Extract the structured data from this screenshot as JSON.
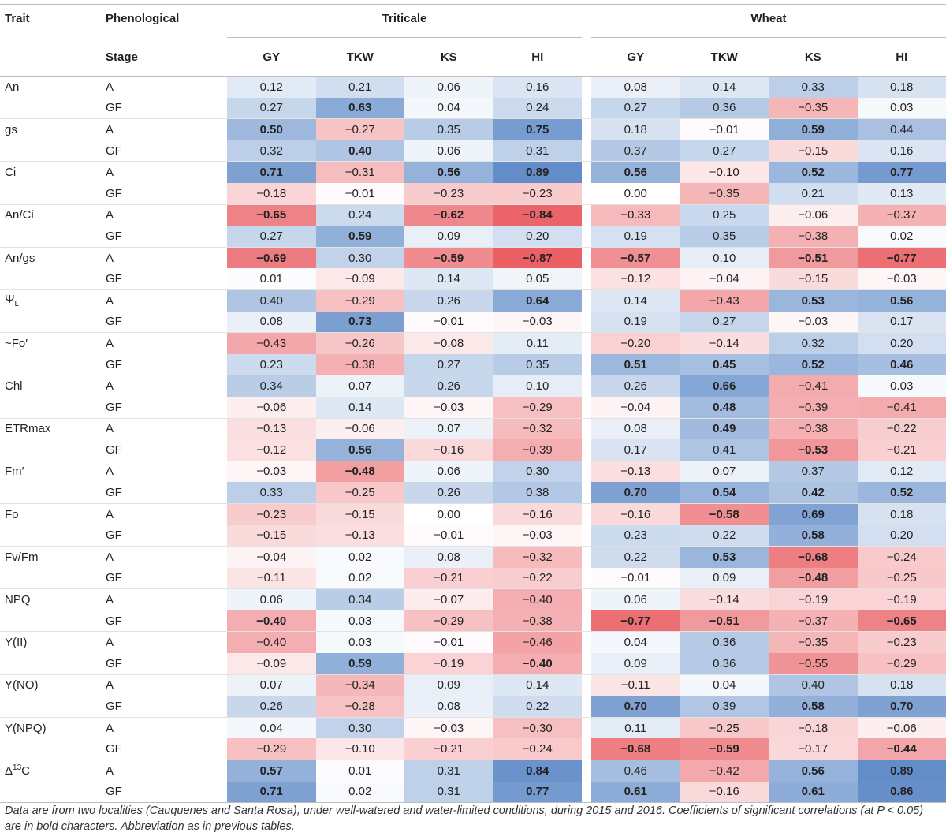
{
  "headers": {
    "trait": "Trait",
    "phenological": "Phenological",
    "stage": "Stage",
    "triticale": "Triticale",
    "wheat": "Wheat",
    "columns": [
      "GY",
      "TKW",
      "KS",
      "HI",
      "GY",
      "TKW",
      "KS",
      "HI"
    ]
  },
  "colors": {
    "positive": "#5a87c6",
    "negative": "#e8545a",
    "max_abs": 0.89
  },
  "rows": [
    {
      "trait": "An",
      "stage": "A",
      "values": [
        "0.12",
        "0.21",
        "0.06",
        "0.16",
        "0.08",
        "0.14",
        "0.33",
        "0.18"
      ],
      "bold": [
        0,
        0,
        0,
        0,
        0,
        0,
        0,
        0
      ]
    },
    {
      "trait": "",
      "stage": "GF",
      "values": [
        "0.27",
        "0.63",
        "0.04",
        "0.24",
        "0.27",
        "0.36",
        "−0.35",
        "0.03"
      ],
      "bold": [
        0,
        1,
        0,
        0,
        0,
        0,
        0,
        0
      ]
    },
    {
      "trait": "gs",
      "stage": "A",
      "values": [
        "0.50",
        "−0.27",
        "0.35",
        "0.75",
        "0.18",
        "−0.01",
        "0.59",
        "0.44"
      ],
      "bold": [
        1,
        0,
        0,
        1,
        0,
        0,
        1,
        0
      ]
    },
    {
      "trait": "",
      "stage": "GF",
      "values": [
        "0.32",
        "0.40",
        "0.06",
        "0.31",
        "0.37",
        "0.27",
        "−0.15",
        "0.16"
      ],
      "bold": [
        0,
        1,
        0,
        0,
        0,
        0,
        0,
        0
      ]
    },
    {
      "trait": "Ci",
      "stage": "A",
      "values": [
        "0.71",
        "−0.31",
        "0.56",
        "0.89",
        "0.56",
        "−0.10",
        "0.52",
        "0.77"
      ],
      "bold": [
        1,
        0,
        1,
        1,
        1,
        0,
        1,
        1
      ]
    },
    {
      "trait": "",
      "stage": "GF",
      "values": [
        "−0.18",
        "−0.01",
        "−0.23",
        "−0.23",
        "0.00",
        "−0.35",
        "0.21",
        "0.13"
      ],
      "bold": [
        0,
        0,
        0,
        0,
        0,
        0,
        0,
        0
      ]
    },
    {
      "trait": "An/Ci",
      "stage": "A",
      "values": [
        "−0.65",
        "0.24",
        "−0.62",
        "−0.84",
        "−0.33",
        "0.25",
        "−0.06",
        "−0.37"
      ],
      "bold": [
        1,
        0,
        1,
        1,
        0,
        0,
        0,
        0
      ]
    },
    {
      "trait": "",
      "stage": "GF",
      "values": [
        "0.27",
        "0.59",
        "0.09",
        "0.20",
        "0.19",
        "0.35",
        "−0.38",
        "0.02"
      ],
      "bold": [
        0,
        1,
        0,
        0,
        0,
        0,
        0,
        0
      ]
    },
    {
      "trait": "An/gs",
      "stage": "A",
      "values": [
        "−0.69",
        "0.30",
        "−0.59",
        "−0.87",
        "−0.57",
        "0.10",
        "−0.51",
        "−0.77"
      ],
      "bold": [
        1,
        0,
        1,
        1,
        1,
        0,
        1,
        1
      ]
    },
    {
      "trait": "",
      "stage": "GF",
      "values": [
        "0.01",
        "−0.09",
        "0.14",
        "0.05",
        "−0.12",
        "−0.04",
        "−0.15",
        "−0.03"
      ],
      "bold": [
        0,
        0,
        0,
        0,
        0,
        0,
        0,
        0
      ]
    },
    {
      "trait": "Ψ",
      "trait_sub": "L",
      "stage": "A",
      "values": [
        "0.40",
        "−0.29",
        "0.26",
        "0.64",
        "0.14",
        "−0.43",
        "0.53",
        "0.56"
      ],
      "bold": [
        0,
        0,
        0,
        1,
        0,
        0,
        1,
        1
      ]
    },
    {
      "trait": "",
      "stage": "GF",
      "values": [
        "0.08",
        "0.73",
        "−0.01",
        "−0.03",
        "0.19",
        "0.27",
        "−0.03",
        "0.17"
      ],
      "bold": [
        0,
        1,
        0,
        0,
        0,
        0,
        0,
        0
      ]
    },
    {
      "trait": "~Fo′",
      "stage": "A",
      "values": [
        "−0.43",
        "−0.26",
        "−0.08",
        "0.11",
        "−0.20",
        "−0.14",
        "0.32",
        "0.20"
      ],
      "bold": [
        0,
        0,
        0,
        0,
        0,
        0,
        0,
        0
      ]
    },
    {
      "trait": "",
      "stage": "GF",
      "values": [
        "0.23",
        "−0.38",
        "0.27",
        "0.35",
        "0.51",
        "0.45",
        "0.52",
        "0.46"
      ],
      "bold": [
        0,
        0,
        0,
        0,
        1,
        1,
        1,
        1
      ]
    },
    {
      "trait": "Chl",
      "stage": "A",
      "values": [
        "0.34",
        "0.07",
        "0.26",
        "0.10",
        "0.26",
        "0.66",
        "−0.41",
        "0.03"
      ],
      "bold": [
        0,
        0,
        0,
        0,
        0,
        1,
        0,
        0
      ]
    },
    {
      "trait": "",
      "stage": "GF",
      "values": [
        "−0.06",
        "0.14",
        "−0.03",
        "−0.29",
        "−0.04",
        "0.48",
        "−0.39",
        "−0.41"
      ],
      "bold": [
        0,
        0,
        0,
        0,
        0,
        1,
        0,
        0
      ]
    },
    {
      "trait": "ETRmax",
      "stage": "A",
      "values": [
        "−0.13",
        "−0.06",
        "0.07",
        "−0.32",
        "0.08",
        "0.49",
        "−0.38",
        "−0.22"
      ],
      "bold": [
        0,
        0,
        0,
        0,
        0,
        1,
        0,
        0
      ]
    },
    {
      "trait": "",
      "stage": "GF",
      "values": [
        "−0.12",
        "0.56",
        "−0.16",
        "−0.39",
        "0.17",
        "0.41",
        "−0.53",
        "−0.21"
      ],
      "bold": [
        0,
        1,
        0,
        0,
        0,
        0,
        1,
        0
      ]
    },
    {
      "trait": "Fm′",
      "stage": "A",
      "values": [
        "−0.03",
        "−0.48",
        "0.06",
        "0.30",
        "−0.13",
        "0.07",
        "0.37",
        "0.12"
      ],
      "bold": [
        0,
        1,
        0,
        0,
        0,
        0,
        0,
        0
      ]
    },
    {
      "trait": "",
      "stage": "GF",
      "values": [
        "0.33",
        "−0.25",
        "0.26",
        "0.38",
        "0.70",
        "0.54",
        "0.42",
        "0.52"
      ],
      "bold": [
        0,
        0,
        0,
        0,
        1,
        1,
        1,
        1
      ]
    },
    {
      "trait": "Fo",
      "stage": "A",
      "values": [
        "−0.23",
        "−0.15",
        "0.00",
        "−0.16",
        "−0.16",
        "−0.58",
        "0.69",
        "0.18"
      ],
      "bold": [
        0,
        0,
        0,
        0,
        0,
        1,
        1,
        0
      ]
    },
    {
      "trait": "",
      "stage": "GF",
      "values": [
        "−0.15",
        "−0.13",
        "−0.01",
        "−0.03",
        "0.23",
        "0.22",
        "0.58",
        "0.20"
      ],
      "bold": [
        0,
        0,
        0,
        0,
        0,
        0,
        1,
        0
      ]
    },
    {
      "trait": "Fv/Fm",
      "stage": "A",
      "values": [
        "−0.04",
        "0.02",
        "0.08",
        "−0.32",
        "0.22",
        "0.53",
        "−0.68",
        "−0.24"
      ],
      "bold": [
        0,
        0,
        0,
        0,
        0,
        1,
        1,
        0
      ]
    },
    {
      "trait": "",
      "stage": "GF",
      "values": [
        "−0.11",
        "0.02",
        "−0.21",
        "−0.22",
        "−0.01",
        "0.09",
        "−0.48",
        "−0.25"
      ],
      "bold": [
        0,
        0,
        0,
        0,
        0,
        0,
        1,
        0
      ]
    },
    {
      "trait": "NPQ",
      "stage": "A",
      "values": [
        "0.06",
        "0.34",
        "−0.07",
        "−0.40",
        "0.06",
        "−0.14",
        "−0.19",
        "−0.19"
      ],
      "bold": [
        0,
        0,
        0,
        0,
        0,
        0,
        0,
        0
      ]
    },
    {
      "trait": "",
      "stage": "GF",
      "values": [
        "−0.40",
        "0.03",
        "−0.29",
        "−0.38",
        "−0.77",
        "−0.51",
        "−0.37",
        "−0.65"
      ],
      "bold": [
        1,
        0,
        0,
        0,
        1,
        1,
        0,
        1
      ]
    },
    {
      "trait": "Y(II)",
      "stage": "A",
      "values": [
        "−0.40",
        "0.03",
        "−0.01",
        "−0.46",
        "0.04",
        "0.36",
        "−0.35",
        "−0.23"
      ],
      "bold": [
        0,
        0,
        0,
        0,
        0,
        0,
        0,
        0
      ]
    },
    {
      "trait": "",
      "stage": "GF",
      "values": [
        "−0.09",
        "0.59",
        "−0.19",
        "−0.40",
        "0.09",
        "0.36",
        "−0.55",
        "−0.29"
      ],
      "bold": [
        0,
        1,
        0,
        1,
        0,
        0,
        0,
        0
      ]
    },
    {
      "trait": "Y(NO)",
      "stage": "A",
      "values": [
        "0.07",
        "−0.34",
        "0.09",
        "0.14",
        "−0.11",
        "0.04",
        "0.40",
        "0.18"
      ],
      "bold": [
        0,
        0,
        0,
        0,
        0,
        0,
        0,
        0
      ]
    },
    {
      "trait": "",
      "stage": "GF",
      "values": [
        "0.26",
        "−0.28",
        "0.08",
        "0.22",
        "0.70",
        "0.39",
        "0.58",
        "0.70"
      ],
      "bold": [
        0,
        0,
        0,
        0,
        1,
        0,
        1,
        1
      ]
    },
    {
      "trait": "Y(NPQ)",
      "stage": "A",
      "values": [
        "0.04",
        "0.30",
        "−0.03",
        "−0.30",
        "0.11",
        "−0.25",
        "−0.18",
        "−0.06"
      ],
      "bold": [
        0,
        0,
        0,
        0,
        0,
        0,
        0,
        0
      ]
    },
    {
      "trait": "",
      "stage": "GF",
      "values": [
        "−0.29",
        "−0.10",
        "−0.21",
        "−0.24",
        "−0.68",
        "−0.59",
        "−0.17",
        "−0.44"
      ],
      "bold": [
        0,
        0,
        0,
        0,
        1,
        1,
        0,
        1
      ]
    },
    {
      "trait": "Δ",
      "trait_sup": "13",
      "trait_tail": "C",
      "stage": "A",
      "values": [
        "0.57",
        "0.01",
        "0.31",
        "0.84",
        "0.46",
        "−0.42",
        "0.56",
        "0.89"
      ],
      "bold": [
        1,
        0,
        0,
        1,
        0,
        0,
        1,
        1
      ]
    },
    {
      "trait": "",
      "stage": "GF",
      "values": [
        "0.71",
        "0.02",
        "0.31",
        "0.77",
        "0.61",
        "−0.16",
        "0.61",
        "0.86"
      ],
      "bold": [
        1,
        0,
        0,
        1,
        1,
        0,
        1,
        1
      ]
    }
  ],
  "footnote": "Data are from two localities (Cauquenes and Santa Rosa), under well-watered and water-limited conditions, during 2015 and 2016. Coefficients of significant correlations (at P < 0.05) are in bold characters. Abbreviation as in previous tables."
}
